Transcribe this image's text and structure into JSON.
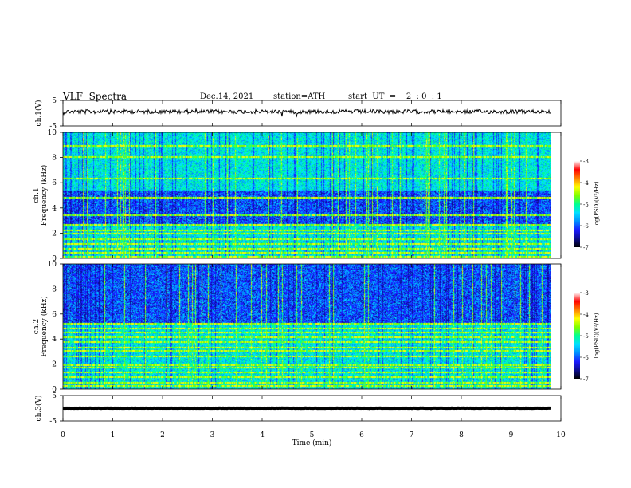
{
  "chart_data": {
    "type": "heatmap",
    "title": "VLF  Spectra",
    "date": "Dec.14, 2021",
    "station": "station=ATH",
    "start_ut": "start  UT  =    2  : 0  : 1",
    "xlabel": "Time  (min)",
    "xlim": [
      0,
      10
    ],
    "x_ticks": [
      "0",
      "1",
      "2",
      "3",
      "4",
      "5",
      "6",
      "7",
      "8",
      "9",
      "10"
    ],
    "data_end_min": 9.8,
    "panels": [
      {
        "kind": "waveform",
        "ylabel": "ch.1(V)",
        "ylim": [
          -5,
          5
        ],
        "y_ticks": [
          "5",
          "-5"
        ],
        "baseline_v": 0.6,
        "noise_amplitude_v": 0.8
      },
      {
        "kind": "spectrogram",
        "ylabel_top": "ch.1",
        "ylabel": "Frequency  (kHz)",
        "ylim": [
          0,
          10
        ],
        "y_ticks": [
          "0",
          "2",
          "4",
          "6",
          "8",
          "10"
        ],
        "dark_band_khz": [
          2.6,
          5.4
        ],
        "bright_lines_khz": [
          0.2,
          0.5,
          0.8,
          1.2,
          1.6,
          2.0,
          2.3,
          2.7,
          3.5,
          4.9,
          6.4,
          8.1,
          9.0
        ],
        "colorbar": {
          "label": "log(PSD)(V²/Hz)",
          "range": [
            -7,
            -3
          ],
          "ticks": [
            "-3",
            "-4",
            "-5",
            "-6",
            "-7"
          ]
        }
      },
      {
        "kind": "spectrogram",
        "ylabel_top": "ch.2",
        "ylabel": "Frequency  (kHz)",
        "ylim": [
          0,
          10
        ],
        "y_ticks": [
          "0",
          "2",
          "4",
          "6",
          "8",
          "10"
        ],
        "dark_band_khz": [
          5.2,
          10.0
        ],
        "bright_lines_khz": [
          0.3,
          0.6,
          1.0,
          1.4,
          1.8,
          2.0,
          2.7,
          3.1,
          3.4,
          3.8,
          4.2,
          4.6,
          4.9,
          5.3
        ],
        "colorbar": {
          "label": "log(PSD)(V²/Hz)",
          "range": [
            -7,
            -3
          ],
          "ticks": [
            "-3",
            "-4",
            "-5",
            "-6",
            "-7"
          ]
        }
      },
      {
        "kind": "waveform",
        "ylabel": "ch.3(V)",
        "ylim": [
          -5,
          5
        ],
        "y_ticks": [
          "5",
          "-5"
        ],
        "baseline_v": 0.0,
        "noise_amplitude_v": 0.05
      }
    ],
    "colormap": [
      "#000000",
      "#0b0b8f",
      "#1a1aff",
      "#0090ff",
      "#00e0ff",
      "#00ff90",
      "#80ff00",
      "#ffff00",
      "#ff8000",
      "#ff0000",
      "#ffffff"
    ]
  }
}
